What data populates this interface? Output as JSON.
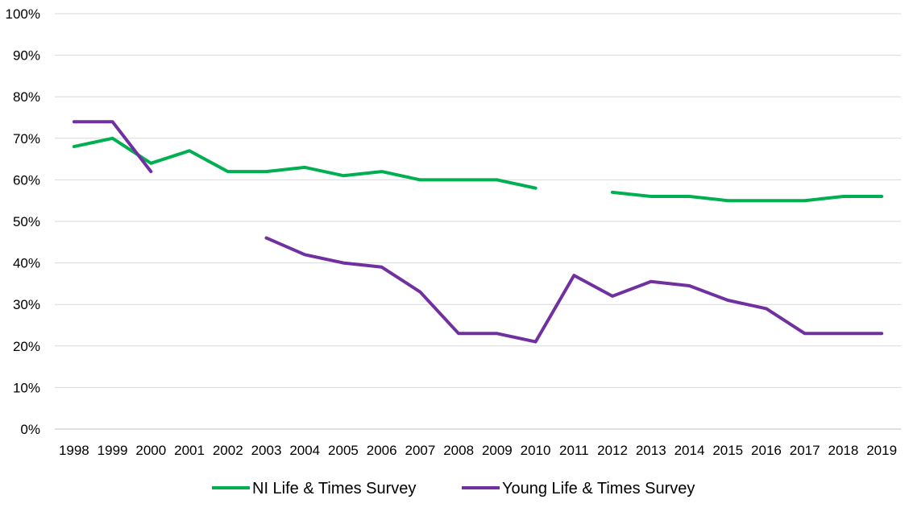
{
  "chart_data": {
    "type": "line",
    "categories": [
      "1998",
      "1999",
      "2000",
      "2001",
      "2002",
      "2003",
      "2004",
      "2005",
      "2006",
      "2007",
      "2008",
      "2009",
      "2010",
      "2011",
      "2012",
      "2013",
      "2014",
      "2015",
      "2016",
      "2017",
      "2018",
      "2019"
    ],
    "ylim": [
      0,
      100
    ],
    "ytick_labels": [
      "0%",
      "10%",
      "20%",
      "30%",
      "40%",
      "50%",
      "60%",
      "70%",
      "80%",
      "90%",
      "100%"
    ],
    "grid": true,
    "legend_position": "bottom",
    "series": [
      {
        "name": "NI Life & Times Survey",
        "color": "#00B050",
        "values": [
          68,
          70,
          64,
          67,
          62,
          62,
          63,
          61,
          62,
          60,
          60,
          60,
          58,
          null,
          57,
          56,
          56,
          55,
          55,
          55,
          56,
          56
        ]
      },
      {
        "name": "Young Life & Times Survey",
        "color": "#7030A0",
        "values": [
          74,
          74,
          62,
          null,
          null,
          46,
          42,
          40,
          39,
          33,
          23,
          23,
          21,
          37,
          32,
          35.5,
          34.5,
          31,
          29,
          23,
          23,
          23
        ]
      }
    ]
  }
}
